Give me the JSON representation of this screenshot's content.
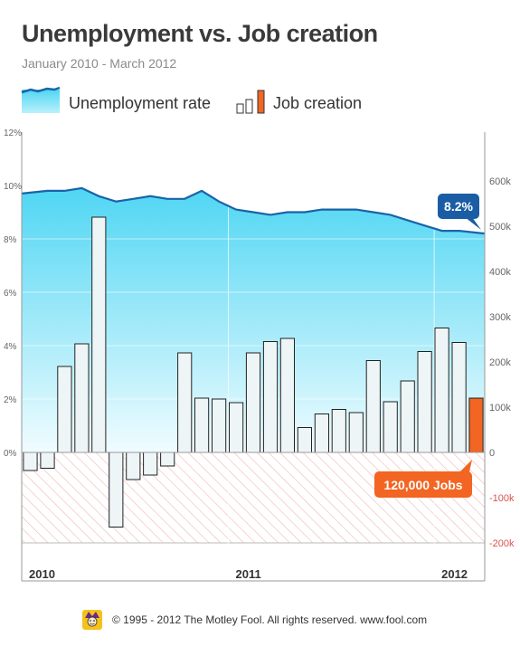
{
  "chart_data": {
    "type": "bar+area",
    "title": "Unemployment vs. Job creation",
    "subtitle": "January 2010 - March 2012",
    "legend": [
      {
        "name": "Unemployment rate",
        "color": "#6fdff6"
      },
      {
        "name": "Job creation",
        "color": "#f26522"
      }
    ],
    "legend_position": "top-left",
    "x_year_labels": [
      "2010",
      "2011",
      "2012"
    ],
    "left_axis": {
      "ticks": [
        "12%",
        "10%",
        "8%",
        "6%",
        "4%",
        "2%",
        "0%"
      ],
      "ylim": [
        0,
        12
      ],
      "unit": "%"
    },
    "right_axis": {
      "ticks": [
        "600k",
        "500k",
        "400k",
        "300k",
        "200k",
        "100k",
        "0",
        "-100k",
        "-200k"
      ],
      "ylim": [
        -200000,
        600000
      ]
    },
    "grid": true,
    "series": [
      {
        "name": "Unemployment rate",
        "type": "area",
        "axis": "left",
        "values": [
          9.7,
          9.8,
          9.8,
          9.9,
          9.6,
          9.4,
          9.5,
          9.6,
          9.5,
          9.5,
          9.8,
          9.4,
          9.1,
          9.0,
          8.9,
          9.0,
          9.0,
          9.1,
          9.1,
          9.1,
          9.0,
          8.9,
          8.7,
          8.5,
          8.3,
          8.3,
          8.2
        ]
      },
      {
        "name": "Job creation",
        "type": "bar",
        "axis": "right",
        "values": [
          -40000,
          -35000,
          190000,
          240000,
          520000,
          -165000,
          -60000,
          -50000,
          -30000,
          220000,
          120000,
          118000,
          110000,
          220000,
          245000,
          252000,
          55000,
          85000,
          95000,
          88000,
          203000,
          112000,
          158000,
          223000,
          275000,
          243000,
          120000
        ],
        "highlight_last": true
      }
    ],
    "annotations": [
      {
        "text": "8.2%",
        "series": "Unemployment rate",
        "point": "last"
      },
      {
        "text": "120,000 Jobs",
        "series": "Job creation",
        "point": "last"
      }
    ]
  },
  "footer": {
    "text": "© 1995 - 2012 The Motley Fool. All rights reserved. www.fool.com"
  },
  "logo": {
    "icon": "jester-logo"
  },
  "colors": {
    "area_top": "#4fd6f3",
    "area_bottom": "#f0fcff",
    "line": "#1a63a8",
    "bar_fill": "#eef5f7",
    "bar_stroke": "#222222",
    "highlight": "#f26522",
    "callout_blue": "#1a5da5",
    "negative_hatch": "#f3b5b5",
    "negative_label": "#d9534f",
    "title": "#3a3a3a",
    "subtitle": "#8a8a8a"
  }
}
